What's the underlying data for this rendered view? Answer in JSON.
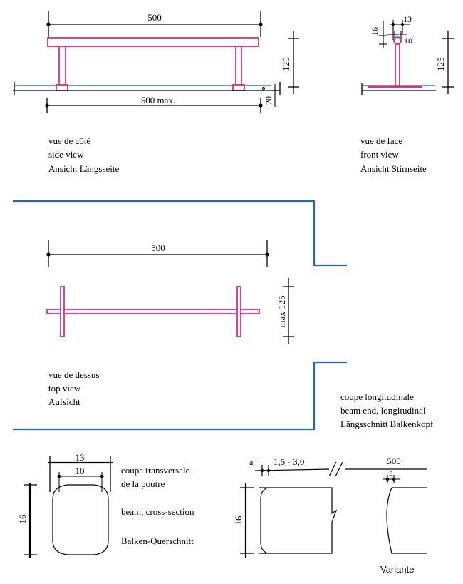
{
  "colors": {
    "beam": "#d6337a",
    "beam_fill": "#ffffff",
    "ground": "#3b6fb6",
    "frame": "#2a66b0",
    "ink": "#000000"
  },
  "side_view": {
    "caption": [
      "vue de côté",
      "side view",
      "Ansicht Längsseite"
    ],
    "dim_length": "500",
    "dim_length_max": "500 max.",
    "dim_height": "125",
    "dim_small": "20"
  },
  "front_view": {
    "caption": [
      "vue de face",
      "front view",
      "Ansicht Stirnseite"
    ],
    "dim_width": "13",
    "dim_inner": "10",
    "dim_height_beam": "16",
    "dim_height": "125"
  },
  "top_view": {
    "caption": [
      "vue de dessus",
      "top view",
      "Aufsicht"
    ],
    "dim_length": "500",
    "dim_width": "max 125"
  },
  "cross_section": {
    "caption": [
      "coupe transversale",
      "de la poutre",
      "beam, cross-section",
      "Balken-Querschnitt"
    ],
    "dim_width": "13",
    "dim_inner": "10",
    "dim_height": "16"
  },
  "longitudinal": {
    "caption": [
      "coupe longitudinale",
      "beam end, longitudinal",
      "Längsschnitt Balkenkopf"
    ],
    "dim_a_label": "a=",
    "dim_a_value": "1,5 - 3,0",
    "dim_length": "500",
    "dim_height": "16",
    "variant_a": "a",
    "variant_label": "Variante"
  }
}
